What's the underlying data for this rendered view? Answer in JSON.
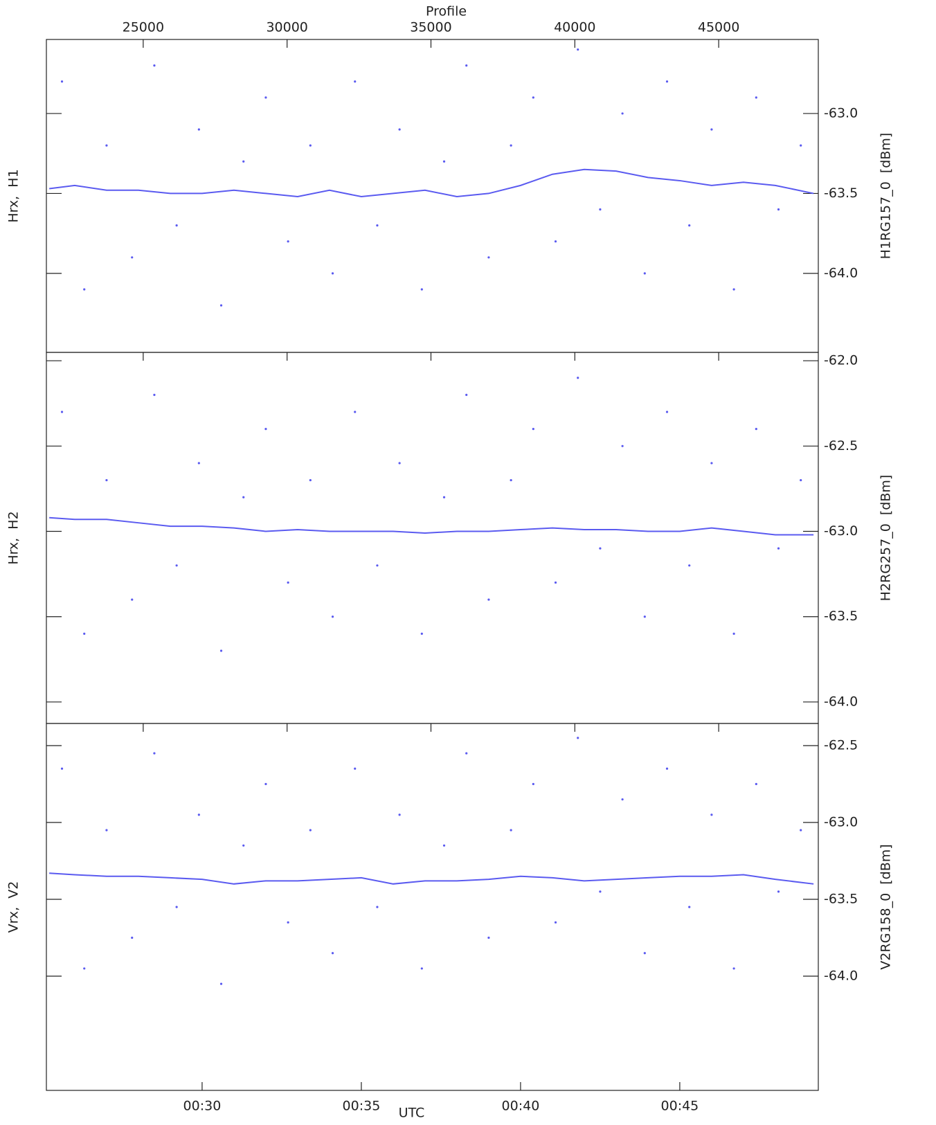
{
  "chart_data": [
    {
      "type": "scatter",
      "x2label": "Profile",
      "x2lim": [
        21635,
        48462
      ],
      "x2ticks": [
        25000,
        30000,
        35000,
        40000,
        45000
      ],
      "xlim": [
        25.11,
        49.35
      ],
      "ylabel": "Hrx,  H1",
      "y2label": "H1RG157_0  [dBm]",
      "ylim": [
        -64.494,
        -62.537
      ],
      "yticks": [
        {
          "value": -63,
          "label": "-63.0"
        },
        {
          "value": -63.5,
          "label": "-63.5"
        },
        {
          "value": -64,
          "label": "-64.0"
        }
      ],
      "series": [
        {
          "mode": "markers",
          "color": "#5a5af0",
          "x": [
            25.6,
            26.3,
            27.0,
            27.8,
            28.5,
            29.2,
            29.9,
            30.6,
            31.3,
            32.0,
            32.7,
            33.4,
            34.1,
            34.8,
            35.5,
            36.2,
            36.9,
            37.6,
            38.3,
            39.0,
            39.7,
            40.4,
            41.1,
            41.8,
            42.5,
            43.2,
            43.9,
            44.6,
            45.3,
            46.0,
            46.7,
            47.4,
            48.1,
            48.8
          ],
          "values": [
            -62.8,
            -64.1,
            -63.2,
            -63.9,
            -62.7,
            -63.7,
            -63.1,
            -64.2,
            -63.3,
            -62.9,
            -63.8,
            -63.2,
            -64.0,
            -62.8,
            -63.7,
            -63.1,
            -64.1,
            -63.3,
            -62.7,
            -63.9,
            -63.2,
            -62.9,
            -63.8,
            -62.6,
            -63.6,
            -63.0,
            -64.0,
            -62.8,
            -63.7,
            -63.1,
            -64.1,
            -62.9,
            -63.6,
            -63.2
          ]
        },
        {
          "mode": "line",
          "color": "#5a5af0",
          "x": [
            25.2,
            26,
            27,
            28,
            29,
            30,
            31,
            32,
            33,
            34,
            35,
            36,
            37,
            38,
            39,
            40,
            41,
            42,
            43,
            44,
            45,
            46,
            47,
            48,
            49.2
          ],
          "values": [
            -63.47,
            -63.45,
            -63.48,
            -63.48,
            -63.5,
            -63.5,
            -63.48,
            -63.5,
            -63.52,
            -63.48,
            -63.52,
            -63.5,
            -63.48,
            -63.52,
            -63.5,
            -63.45,
            -63.38,
            -63.35,
            -63.36,
            -63.4,
            -63.42,
            -63.45,
            -63.43,
            -63.45,
            -63.5
          ]
        }
      ]
    },
    {
      "type": "scatter",
      "xlim": [
        25.11,
        49.35
      ],
      "ylabel": "Hrx,  H2",
      "y2label": "H2RG257_0  [dBm]",
      "ylim": [
        -64.126,
        -61.951
      ],
      "yticks": [
        {
          "value": -62,
          "label": "-62.0"
        },
        {
          "value": -62.5,
          "label": "-62.5"
        },
        {
          "value": -63,
          "label": "-63.0"
        },
        {
          "value": -63.5,
          "label": "-63.5"
        },
        {
          "value": -64,
          "label": "-64.0"
        }
      ],
      "series": [
        {
          "mode": "markers",
          "color": "#5a5af0",
          "x": [
            25.6,
            26.3,
            27.0,
            27.8,
            28.5,
            29.2,
            29.9,
            30.6,
            31.3,
            32.0,
            32.7,
            33.4,
            34.1,
            34.8,
            35.5,
            36.2,
            36.9,
            37.6,
            38.3,
            39.0,
            39.7,
            40.4,
            41.1,
            41.8,
            42.5,
            43.2,
            43.9,
            44.6,
            45.3,
            46.0,
            46.7,
            47.4,
            48.1,
            48.8
          ],
          "values": [
            -62.3,
            -63.6,
            -62.7,
            -63.4,
            -62.2,
            -63.2,
            -62.6,
            -63.7,
            -62.8,
            -62.4,
            -63.3,
            -62.7,
            -63.5,
            -62.3,
            -63.2,
            -62.6,
            -63.6,
            -62.8,
            -62.2,
            -63.4,
            -62.7,
            -62.4,
            -63.3,
            -62.1,
            -63.1,
            -62.5,
            -63.5,
            -62.3,
            -63.2,
            -62.6,
            -63.6,
            -62.4,
            -63.1,
            -62.7
          ]
        },
        {
          "mode": "line",
          "color": "#5a5af0",
          "x": [
            25.2,
            26,
            27,
            28,
            29,
            30,
            31,
            32,
            33,
            34,
            35,
            36,
            37,
            38,
            39,
            40,
            41,
            42,
            43,
            44,
            45,
            46,
            47,
            48,
            49.2
          ],
          "values": [
            -62.92,
            -62.93,
            -62.93,
            -62.95,
            -62.97,
            -62.97,
            -62.98,
            -63.0,
            -62.99,
            -63.0,
            -63.0,
            -63.0,
            -63.01,
            -63.0,
            -63.0,
            -62.99,
            -62.98,
            -62.99,
            -62.99,
            -63.0,
            -63.0,
            -62.98,
            -63.0,
            -63.02,
            -63.02
          ]
        }
      ]
    },
    {
      "type": "scatter",
      "xlabel": "UTC",
      "xlim": [
        25.11,
        49.35
      ],
      "xticks": [
        {
          "value": 30,
          "label": "00:30"
        },
        {
          "value": 35,
          "label": "00:35"
        },
        {
          "value": 40,
          "label": "00:40"
        },
        {
          "value": 45,
          "label": "00:45"
        }
      ],
      "ylabel": "Vrx,  V2",
      "y2label": "V2RG158_0  [dBm]",
      "ylim": [
        -64.743,
        -62.356
      ],
      "yticks": [
        {
          "value": -62.5,
          "label": "-62.5"
        },
        {
          "value": -63,
          "label": "-63.0"
        },
        {
          "value": -63.5,
          "label": "-63.5"
        },
        {
          "value": -64,
          "label": "-64.0"
        }
      ],
      "series": [
        {
          "mode": "markers",
          "color": "#5a5af0",
          "x": [
            25.6,
            26.3,
            27.0,
            27.8,
            28.5,
            29.2,
            29.9,
            30.6,
            31.3,
            32.0,
            32.7,
            33.4,
            34.1,
            34.8,
            35.5,
            36.2,
            36.9,
            37.6,
            38.3,
            39.0,
            39.7,
            40.4,
            41.1,
            41.8,
            42.5,
            43.2,
            43.9,
            44.6,
            45.3,
            46.0,
            46.7,
            47.4,
            48.1,
            48.8
          ],
          "values": [
            -62.65,
            -63.95,
            -63.05,
            -63.75,
            -62.55,
            -63.55,
            -62.95,
            -64.05,
            -63.15,
            -62.75,
            -63.65,
            -63.05,
            -63.85,
            -62.65,
            -63.55,
            -62.95,
            -63.95,
            -63.15,
            -62.55,
            -63.75,
            -63.05,
            -62.75,
            -63.65,
            -62.45,
            -63.45,
            -62.85,
            -63.85,
            -62.65,
            -63.55,
            -62.95,
            -63.95,
            -62.75,
            -63.45,
            -63.05
          ]
        },
        {
          "mode": "line",
          "color": "#5a5af0",
          "x": [
            25.2,
            26,
            27,
            28,
            29,
            30,
            31,
            32,
            33,
            34,
            35,
            36,
            37,
            38,
            39,
            40,
            41,
            42,
            43,
            44,
            45,
            46,
            47,
            48,
            49.2
          ],
          "values": [
            -63.33,
            -63.34,
            -63.35,
            -63.35,
            -63.36,
            -63.37,
            -63.4,
            -63.38,
            -63.38,
            -63.37,
            -63.36,
            -63.4,
            -63.38,
            -63.38,
            -63.37,
            -63.35,
            -63.36,
            -63.38,
            -63.37,
            -63.36,
            -63.35,
            -63.35,
            -63.34,
            -63.37,
            -63.4
          ]
        }
      ]
    }
  ]
}
